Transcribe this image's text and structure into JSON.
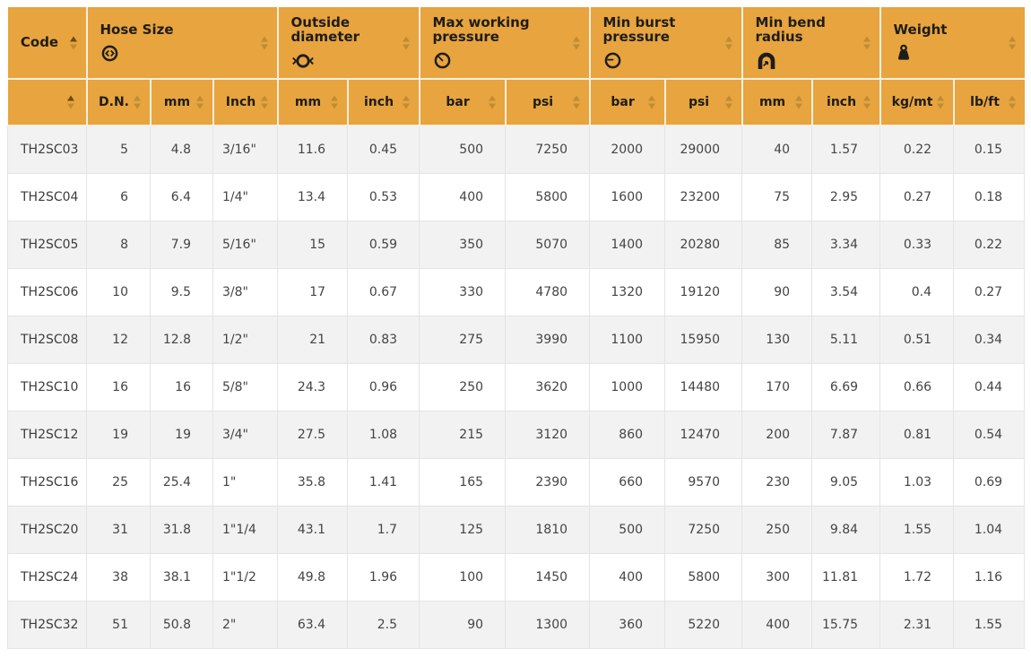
{
  "colors": {
    "header_bg": "#E8A43E",
    "header_text": "#1D1D1B",
    "header_divider": "#F6EFDF",
    "sort_active": "#6B4A10",
    "sort_inactive": "#BE8C34",
    "row_alt_bg": "#F2F2F2",
    "row_bg": "#FFFFFF",
    "body_text": "#444444",
    "body_border": "#E4E4E4"
  },
  "table": {
    "column_groups": [
      {
        "label": "Code",
        "icon": "",
        "colspan": 1,
        "sorted": "asc"
      },
      {
        "label": "Hose Size",
        "icon": "hose-size-icon",
        "colspan": 3,
        "sorted": "none"
      },
      {
        "label": "Outside diameter",
        "icon": "outside-diameter-icon",
        "colspan": 2,
        "sorted": "none"
      },
      {
        "label": "Max working pressure",
        "icon": "pressure-gauge-icon",
        "colspan": 2,
        "sorted": "none"
      },
      {
        "label": "Min burst pressure",
        "icon": "burst-gauge-icon",
        "colspan": 2,
        "sorted": "none"
      },
      {
        "label": "Min bend radius",
        "icon": "bend-radius-icon",
        "colspan": 2,
        "sorted": "none"
      },
      {
        "label": "Weight",
        "icon": "weight-icon",
        "colspan": 2,
        "sorted": "none"
      }
    ],
    "subheaders": [
      {
        "label": "",
        "sorted": "asc"
      },
      {
        "label": "D.N.",
        "sorted": "none"
      },
      {
        "label": "mm",
        "sorted": "none"
      },
      {
        "label": "Inch",
        "sorted": "none"
      },
      {
        "label": "mm",
        "sorted": "none"
      },
      {
        "label": "inch",
        "sorted": "none"
      },
      {
        "label": "bar",
        "sorted": "none"
      },
      {
        "label": "psi",
        "sorted": "none"
      },
      {
        "label": "bar",
        "sorted": "none"
      },
      {
        "label": "psi",
        "sorted": "none"
      },
      {
        "label": "mm",
        "sorted": "none"
      },
      {
        "label": "inch",
        "sorted": "none"
      },
      {
        "label": "kg/mt",
        "sorted": "none"
      },
      {
        "label": "lb/ft",
        "sorted": "none"
      }
    ],
    "rows": [
      [
        "TH2SC03",
        "5",
        "4.8",
        "3/16\"",
        "11.6",
        "0.45",
        "500",
        "7250",
        "2000",
        "29000",
        "40",
        "1.57",
        "0.22",
        "0.15"
      ],
      [
        "TH2SC04",
        "6",
        "6.4",
        "1/4\"",
        "13.4",
        "0.53",
        "400",
        "5800",
        "1600",
        "23200",
        "75",
        "2.95",
        "0.27",
        "0.18"
      ],
      [
        "TH2SC05",
        "8",
        "7.9",
        "5/16\"",
        "15",
        "0.59",
        "350",
        "5070",
        "1400",
        "20280",
        "85",
        "3.34",
        "0.33",
        "0.22"
      ],
      [
        "TH2SC06",
        "10",
        "9.5",
        "3/8\"",
        "17",
        "0.67",
        "330",
        "4780",
        "1320",
        "19120",
        "90",
        "3.54",
        "0.4",
        "0.27"
      ],
      [
        "TH2SC08",
        "12",
        "12.8",
        "1/2\"",
        "21",
        "0.83",
        "275",
        "3990",
        "1100",
        "15950",
        "130",
        "5.11",
        "0.51",
        "0.34"
      ],
      [
        "TH2SC10",
        "16",
        "16",
        "5/8\"",
        "24.3",
        "0.96",
        "250",
        "3620",
        "1000",
        "14480",
        "170",
        "6.69",
        "0.66",
        "0.44"
      ],
      [
        "TH2SC12",
        "19",
        "19",
        "3/4\"",
        "27.5",
        "1.08",
        "215",
        "3120",
        "860",
        "12470",
        "200",
        "7.87",
        "0.81",
        "0.54"
      ],
      [
        "TH2SC16",
        "25",
        "25.4",
        "1\"",
        "35.8",
        "1.41",
        "165",
        "2390",
        "660",
        "9570",
        "230",
        "9.05",
        "1.03",
        "0.69"
      ],
      [
        "TH2SC20",
        "31",
        "31.8",
        "1\"1/4",
        "43.1",
        "1.7",
        "125",
        "1810",
        "500",
        "7250",
        "250",
        "9.84",
        "1.55",
        "1.04"
      ],
      [
        "TH2SC24",
        "38",
        "38.1",
        "1\"1/2",
        "49.8",
        "1.96",
        "100",
        "1450",
        "400",
        "5800",
        "300",
        "11.81",
        "1.72",
        "1.16"
      ],
      [
        "TH2SC32",
        "51",
        "50.8",
        "2\"",
        "63.4",
        "2.5",
        "90",
        "1300",
        "360",
        "5220",
        "400",
        "15.75",
        "2.31",
        "1.55"
      ]
    ]
  }
}
